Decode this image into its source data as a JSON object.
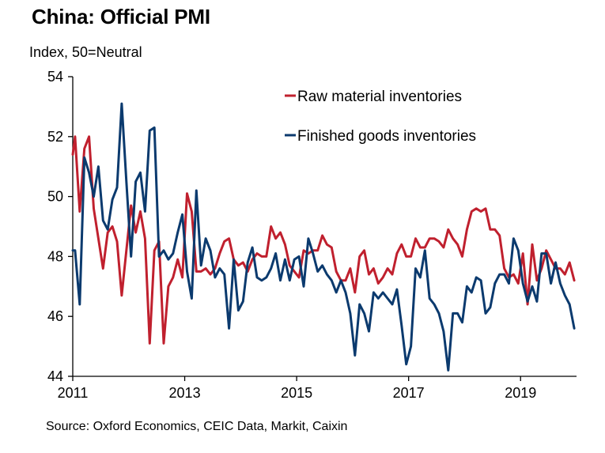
{
  "chart_data": {
    "type": "line",
    "title": "China: Official PMI",
    "ylabel": "Index, 50=Neutral",
    "xlabel": "",
    "source": "Source: Oxford Economics, CEIC Data, Markit, Caixin",
    "frequency": "monthly",
    "start": "2011-01",
    "end": "2019-12",
    "ylim": [
      44,
      54
    ],
    "xlim": [
      2011,
      2020
    ],
    "y_ticks": [
      44,
      46,
      48,
      50,
      52,
      54
    ],
    "x_ticks": [
      2011,
      2013,
      2015,
      2017,
      2019
    ],
    "x_tick_labels": [
      "2011",
      "2013",
      "2015",
      "2017",
      "2019"
    ],
    "y_tick_labels": [
      "44",
      "46",
      "48",
      "50",
      "52",
      "54"
    ],
    "grid": false,
    "legend_position": "top-right",
    "series": [
      {
        "name": "Raw material inventories",
        "color": "#C0202E",
        "values": [
          52.0,
          49.5,
          51.6,
          52.0,
          49.6,
          48.6,
          47.6,
          48.8,
          49.0,
          48.5,
          46.7,
          48.2,
          49.7,
          48.8,
          49.5,
          48.6,
          45.1,
          48.2,
          48.5,
          45.1,
          47.0,
          47.3,
          47.9,
          47.3,
          50.1,
          49.5,
          47.5,
          47.5,
          47.6,
          47.4,
          47.6,
          48.1,
          48.5,
          48.6,
          47.9,
          47.7,
          47.8,
          47.5,
          47.9,
          48.1,
          48.0,
          48.0,
          49.0,
          48.6,
          48.8,
          48.4,
          47.7,
          47.5,
          47.3,
          48.2,
          48.1,
          48.2,
          48.2,
          48.7,
          48.4,
          48.3,
          47.5,
          47.2,
          47.2,
          47.6,
          46.8,
          48.0,
          48.2,
          47.4,
          47.6,
          47.1,
          47.3,
          47.6,
          47.4,
          48.1,
          48.4,
          48.0,
          48.0,
          48.6,
          48.3,
          48.3,
          48.6,
          48.6,
          48.5,
          48.3,
          48.9,
          48.6,
          48.4,
          48.0,
          48.9,
          49.5,
          49.6,
          49.5,
          49.6,
          48.9,
          48.9,
          48.7,
          47.6,
          47.3,
          47.4,
          47.1,
          48.1,
          46.4,
          48.4,
          47.2,
          47.6,
          48.2,
          47.9,
          47.6,
          47.6,
          47.4,
          47.8,
          47.2
        ]
      },
      {
        "name": "Finished goods inventories",
        "color": "#0B3A6E",
        "values": [
          48.2,
          46.4,
          51.3,
          50.8,
          50.0,
          51.0,
          49.2,
          48.9,
          49.9,
          50.3,
          53.1,
          50.5,
          48.0,
          50.5,
          50.8,
          49.5,
          52.2,
          52.3,
          48.0,
          48.2,
          47.9,
          48.1,
          48.8,
          49.4,
          47.5,
          46.6,
          50.2,
          47.7,
          48.6,
          48.2,
          47.3,
          47.6,
          47.4,
          45.6,
          47.9,
          46.2,
          46.5,
          47.8,
          48.3,
          47.3,
          47.2,
          47.3,
          47.6,
          48.1,
          47.2,
          47.9,
          47.2,
          47.9,
          48.0,
          47.0,
          48.6,
          48.1,
          47.5,
          47.7,
          47.4,
          47.2,
          46.8,
          47.2,
          46.8,
          46.1,
          44.7,
          46.4,
          46.1,
          45.5,
          46.8,
          46.6,
          46.8,
          46.6,
          46.4,
          46.9,
          45.7,
          44.4,
          45.0,
          47.6,
          47.3,
          48.2,
          46.6,
          46.4,
          46.1,
          45.5,
          44.2,
          46.1,
          46.1,
          45.8,
          47.0,
          46.8,
          47.3,
          47.2,
          46.1,
          46.3,
          47.1,
          47.4,
          47.4,
          47.1,
          48.6,
          48.2,
          47.1,
          46.5,
          47.0,
          46.5,
          48.1,
          48.1,
          47.1,
          47.8,
          47.1,
          46.7,
          46.4,
          45.6
        ]
      }
    ]
  }
}
